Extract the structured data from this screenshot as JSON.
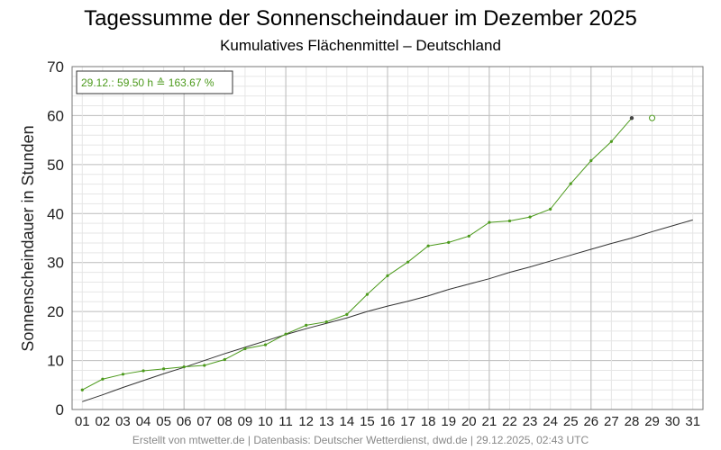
{
  "title": "Tagessumme der Sonnenscheindauer im Dezember 2025",
  "subtitle": "Kumulatives Flächenmittel – Deutschland",
  "footer": "Erstellt von mtwetter.de | Datenbasis: Deutscher Wetterdienst, dwd.de | 29.12.2025, 02:43 UTC",
  "annotation": "29.12.: 59.50 h ≙ 163.67 %",
  "colors": {
    "current": "#4c9a1c",
    "reference": "#333333",
    "annotation": "#4c9a1c",
    "grid_major": "#bbbbbb",
    "grid_minor": "#e6e6e6"
  },
  "chart_data": {
    "type": "line",
    "title": "Tagessumme der Sonnenscheindauer im Dezember 2025",
    "subtitle": "Kumulatives Flächenmittel – Deutschland",
    "xlabel": "",
    "ylabel": "Sonnenscheindauer in Stunden",
    "ylim": [
      0,
      70
    ],
    "yticks": [
      0,
      10,
      20,
      30,
      40,
      50,
      60,
      70
    ],
    "xlim": [
      0.5,
      31.5
    ],
    "xticks": [
      "01",
      "02",
      "03",
      "04",
      "05",
      "06",
      "07",
      "08",
      "09",
      "10",
      "11",
      "12",
      "13",
      "14",
      "15",
      "16",
      "17",
      "18",
      "19",
      "20",
      "21",
      "22",
      "23",
      "24",
      "25",
      "26",
      "27",
      "28",
      "29",
      "30",
      "31"
    ],
    "grid": true,
    "series": [
      {
        "x": [
          1,
          2,
          3,
          4,
          5,
          6,
          7,
          8,
          9,
          10,
          11,
          12,
          13,
          14,
          15,
          16,
          17,
          18,
          19,
          20,
          21,
          22,
          23,
          24,
          25,
          26,
          27,
          28
        ],
        "values": [
          4.0,
          6.2,
          7.2,
          7.9,
          8.3,
          8.7,
          9.0,
          10.2,
          12.4,
          13.2,
          15.4,
          17.2,
          17.9,
          19.4,
          23.5,
          27.3,
          30.1,
          33.4,
          34.1,
          35.4,
          38.2,
          38.5,
          39.3,
          40.9,
          46.1,
          50.8,
          54.7,
          59.5
        ]
      },
      {
        "x": [
          1,
          2,
          3,
          4,
          5,
          6,
          7,
          8,
          9,
          10,
          11,
          12,
          13,
          14,
          15,
          16,
          17,
          18,
          19,
          20,
          21,
          22,
          23,
          24,
          25,
          26,
          27,
          28,
          29,
          30,
          31
        ],
        "values": [
          1.6,
          3.0,
          4.5,
          5.9,
          7.3,
          8.6,
          10.0,
          11.4,
          12.7,
          14.0,
          15.3,
          16.5,
          17.6,
          18.7,
          20.0,
          21.1,
          22.1,
          23.2,
          24.5,
          25.6,
          26.7,
          28.0,
          29.1,
          30.3,
          31.5,
          32.7,
          33.9,
          35.0,
          36.3,
          37.5,
          38.7
        ]
      }
    ],
    "forecast_point": {
      "x": 29,
      "y": 59.5
    }
  }
}
